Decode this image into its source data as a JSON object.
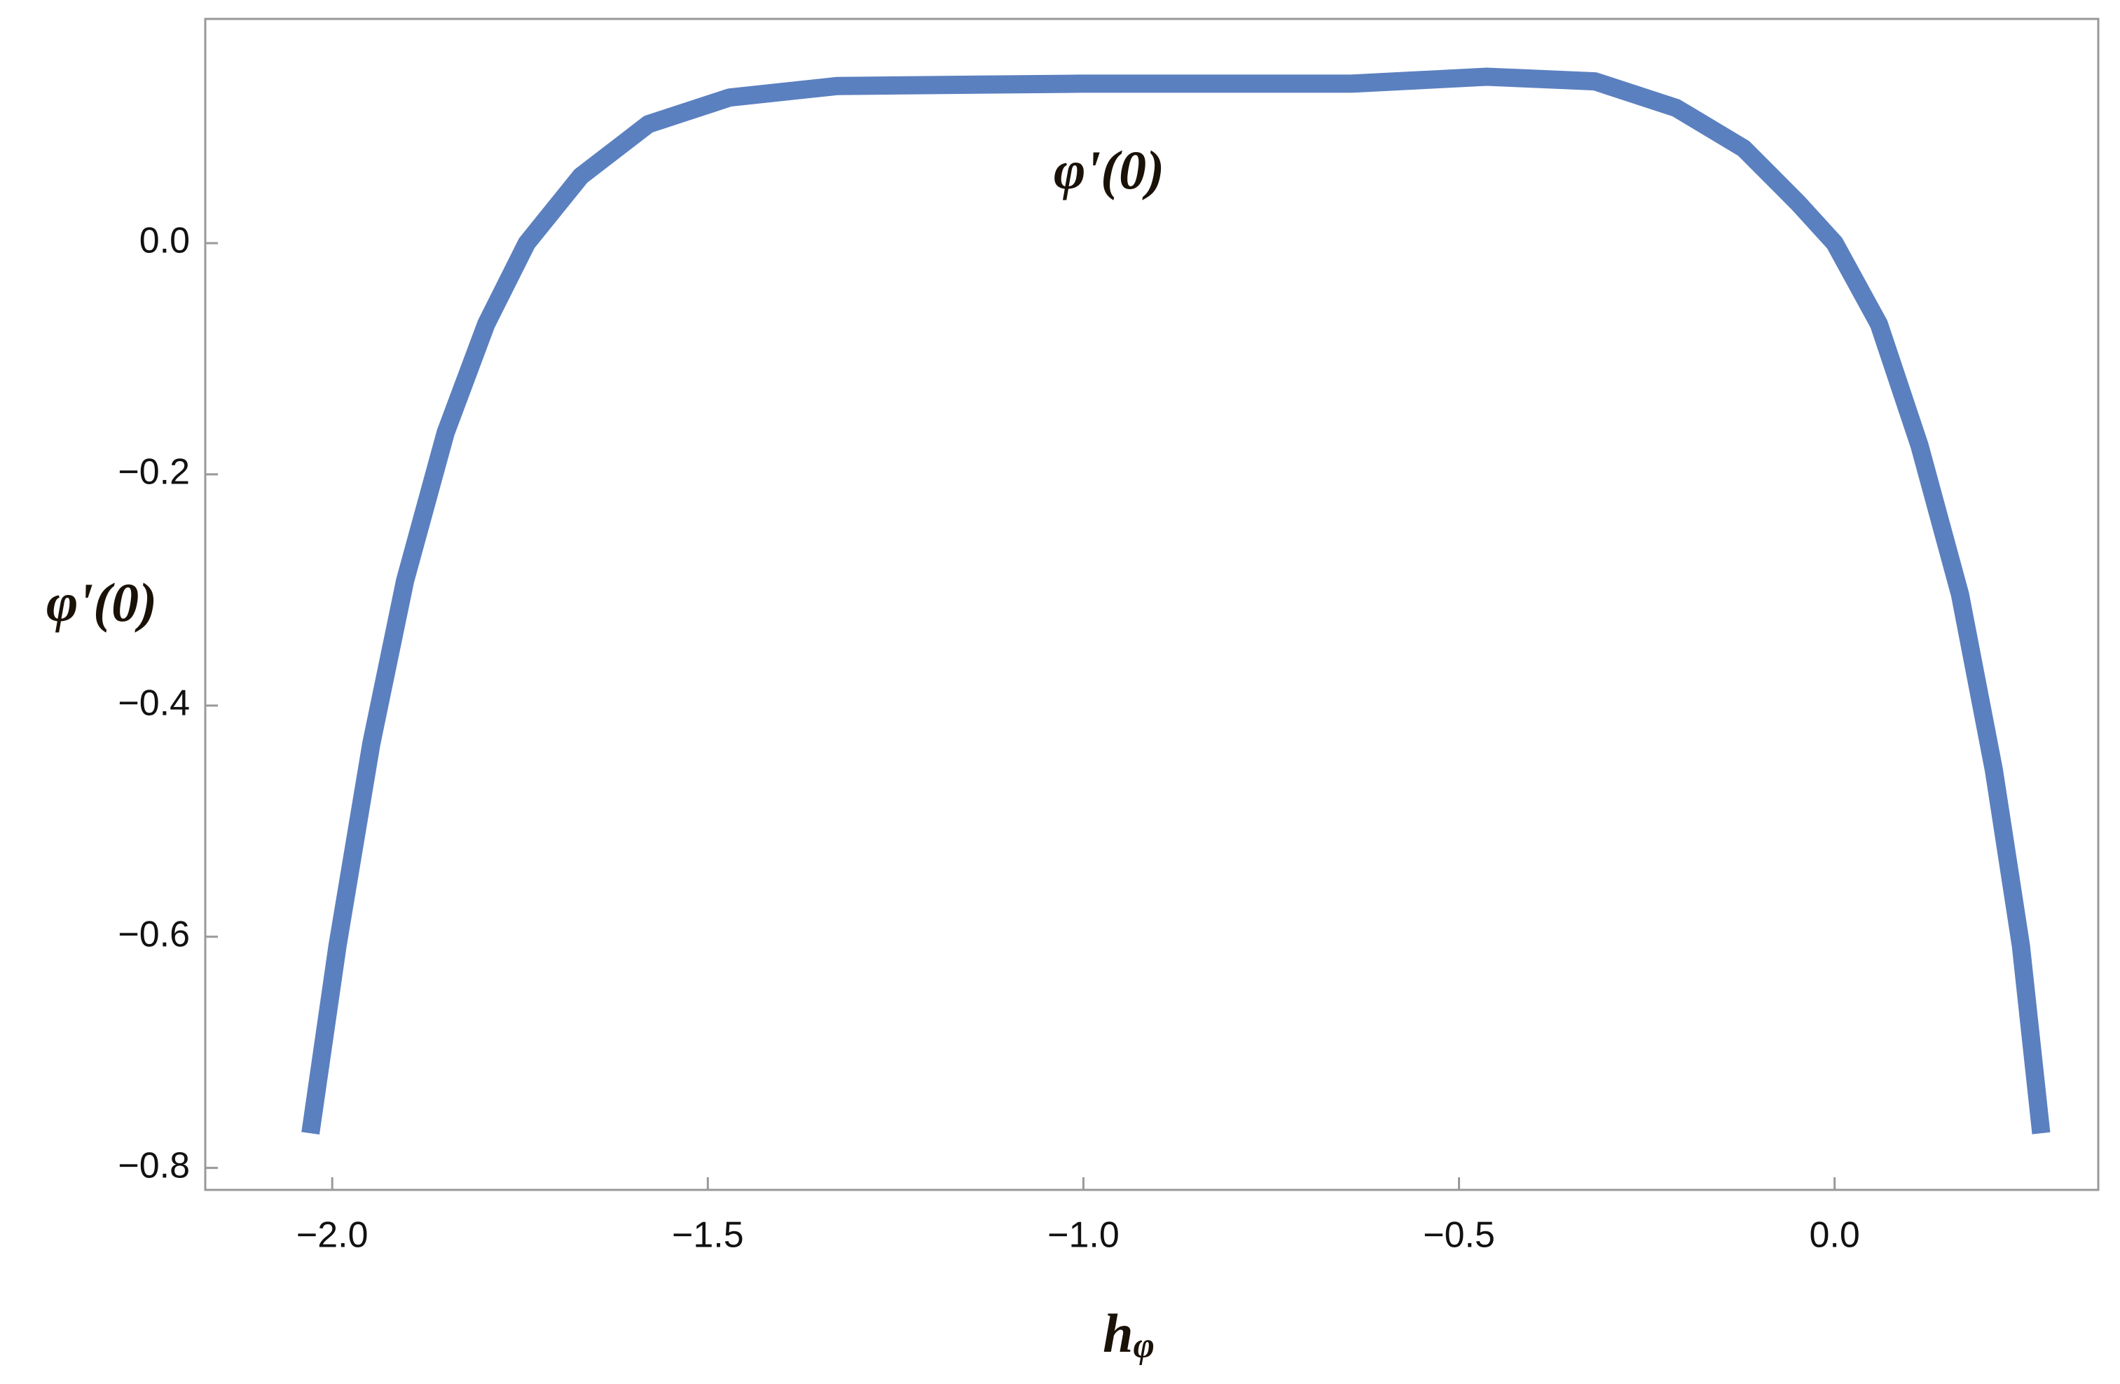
{
  "chart_data": {
    "type": "line",
    "x_label": "h",
    "x_label_subscript": "φ",
    "y_label": "φ'(0)",
    "annotation": "φ'(0)",
    "series": [
      {
        "color": "#5b80c0",
        "x": [
          -2.029,
          -1.993,
          -1.948,
          -1.903,
          -1.849,
          -1.795,
          -1.741,
          -1.669,
          -1.579,
          -1.471,
          -1.327,
          -1.003,
          -0.643,
          -0.463,
          -0.319,
          -0.211,
          -0.121,
          -0.049,
          0.0,
          0.059,
          0.113,
          0.167,
          0.212,
          0.248,
          0.275
        ],
        "values": [
          -0.77,
          -0.608,
          -0.433,
          -0.292,
          -0.164,
          -0.07,
          0.0,
          0.058,
          0.103,
          0.126,
          0.136,
          0.138,
          0.138,
          0.144,
          0.14,
          0.117,
          0.082,
          0.035,
          0.0,
          -0.07,
          -0.175,
          -0.304,
          -0.456,
          -0.608,
          -0.77
        ]
      }
    ],
    "xlim": [
      -2.169,
      0.351
    ],
    "ylim": [
      -0.819,
      0.194
    ],
    "xticks": [
      {
        "value": -2,
        "label": "−2.0"
      },
      {
        "value": -1.5,
        "label": "−1.5"
      },
      {
        "value": -1,
        "label": "−1.0"
      },
      {
        "value": -0.5,
        "label": "−0.5"
      },
      {
        "value": 0,
        "label": "0.0"
      }
    ],
    "yticks": [
      {
        "value": 0,
        "label": "0.0"
      },
      {
        "value": -0.2,
        "label": "−0.2"
      },
      {
        "value": -0.4,
        "label": "−0.4"
      },
      {
        "value": -0.6,
        "label": "−0.6"
      },
      {
        "value": -0.8,
        "label": "−0.8"
      }
    ],
    "grid": false
  }
}
